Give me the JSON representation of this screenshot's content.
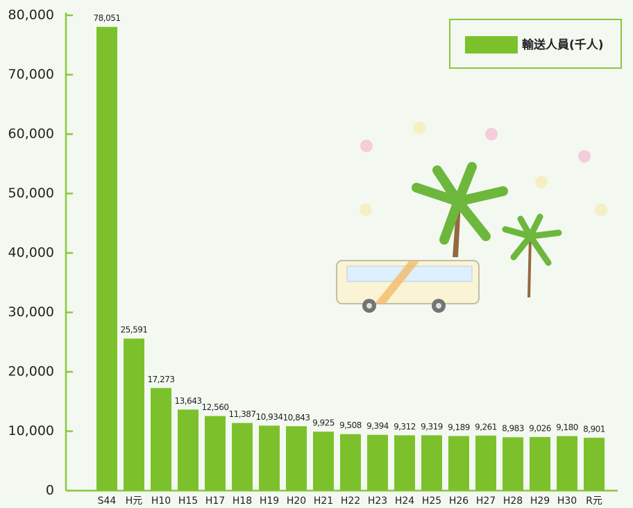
{
  "chart_data": {
    "type": "bar",
    "categories": [
      "S44",
      "H元",
      "H10",
      "H15",
      "H17",
      "H18",
      "H19",
      "H20",
      "H21",
      "H22",
      "H23",
      "H24",
      "H25",
      "H26",
      "H27",
      "H28",
      "H29",
      "H30",
      "R元"
    ],
    "series": [
      {
        "name": "輸送人員(千人)",
        "color": "#7cc12c",
        "values": [
          78051,
          25591,
          17273,
          13643,
          12560,
          11387,
          10934,
          10843,
          9925,
          9508,
          9394,
          9312,
          9319,
          9189,
          9261,
          8983,
          9026,
          9180,
          8901
        ],
        "value_labels": [
          "78,051",
          "25,591",
          "17,273",
          "13,643",
          "12,560",
          "11,387",
          "10,934",
          "10,843",
          "9,925",
          "9,508",
          "9,394",
          "9,312",
          "9,319",
          "9,189",
          "9,261",
          "8,983",
          "9,026",
          "9,180",
          "8,901"
        ]
      }
    ],
    "ylim": [
      0,
      80000
    ],
    "yticks": [
      0,
      {
        "value": 10000,
        "label": "10,000"
      },
      {
        "value": 20000,
        "label": "20,000"
      },
      {
        "value": 30000,
        "label": "30,000"
      },
      {
        "value": 40000,
        "label": "40,000"
      },
      {
        "value": 50000,
        "label": "50,000"
      },
      {
        "value": 60000,
        "label": "60,000"
      },
      {
        "value": 70000,
        "label": "70,000"
      },
      {
        "value": 80000,
        "label": "80,000"
      }
    ],
    "legend": "top-right",
    "grid": false
  }
}
